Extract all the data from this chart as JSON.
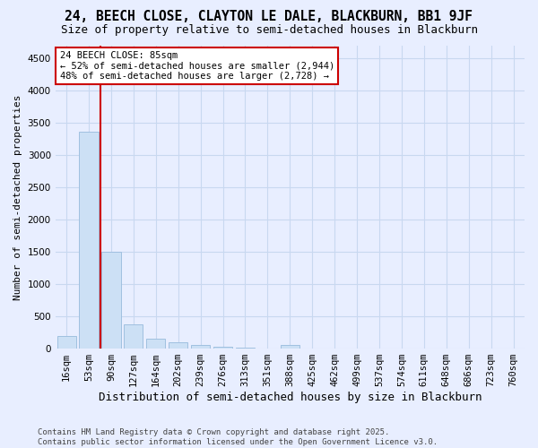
{
  "title1": "24, BEECH CLOSE, CLAYTON LE DALE, BLACKBURN, BB1 9JF",
  "title2": "Size of property relative to semi-detached houses in Blackburn",
  "xlabel": "Distribution of semi-detached houses by size in Blackburn",
  "ylabel": "Number of semi-detached properties",
  "categories": [
    "16sqm",
    "53sqm",
    "90sqm",
    "127sqm",
    "164sqm",
    "202sqm",
    "239sqm",
    "276sqm",
    "313sqm",
    "351sqm",
    "388sqm",
    "425sqm",
    "462sqm",
    "499sqm",
    "537sqm",
    "574sqm",
    "611sqm",
    "648sqm",
    "686sqm",
    "723sqm",
    "760sqm"
  ],
  "values": [
    200,
    3370,
    1500,
    380,
    160,
    100,
    55,
    30,
    15,
    0,
    55,
    0,
    0,
    0,
    0,
    0,
    0,
    0,
    0,
    0,
    0
  ],
  "bar_color": "#cce0f5",
  "bar_edgecolor": "#a0c0e0",
  "red_line_x": 1.5,
  "red_line_color": "#cc0000",
  "annotation_text": "24 BEECH CLOSE: 85sqm\n← 52% of semi-detached houses are smaller (2,944)\n48% of semi-detached houses are larger (2,728) →",
  "annotation_box_facecolor": "#ffffff",
  "annotation_box_edgecolor": "#cc0000",
  "ylim": [
    0,
    4700
  ],
  "yticks": [
    0,
    500,
    1000,
    1500,
    2000,
    2500,
    3000,
    3500,
    4000,
    4500
  ],
  "footer": "Contains HM Land Registry data © Crown copyright and database right 2025.\nContains public sector information licensed under the Open Government Licence v3.0.",
  "bg_color": "#e8eeff",
  "grid_color": "#c8d8f0",
  "title1_fontsize": 10.5,
  "title2_fontsize": 9,
  "xlabel_fontsize": 9,
  "ylabel_fontsize": 8,
  "tick_fontsize": 7.5,
  "annotation_fontsize": 7.5,
  "footer_fontsize": 6.5
}
